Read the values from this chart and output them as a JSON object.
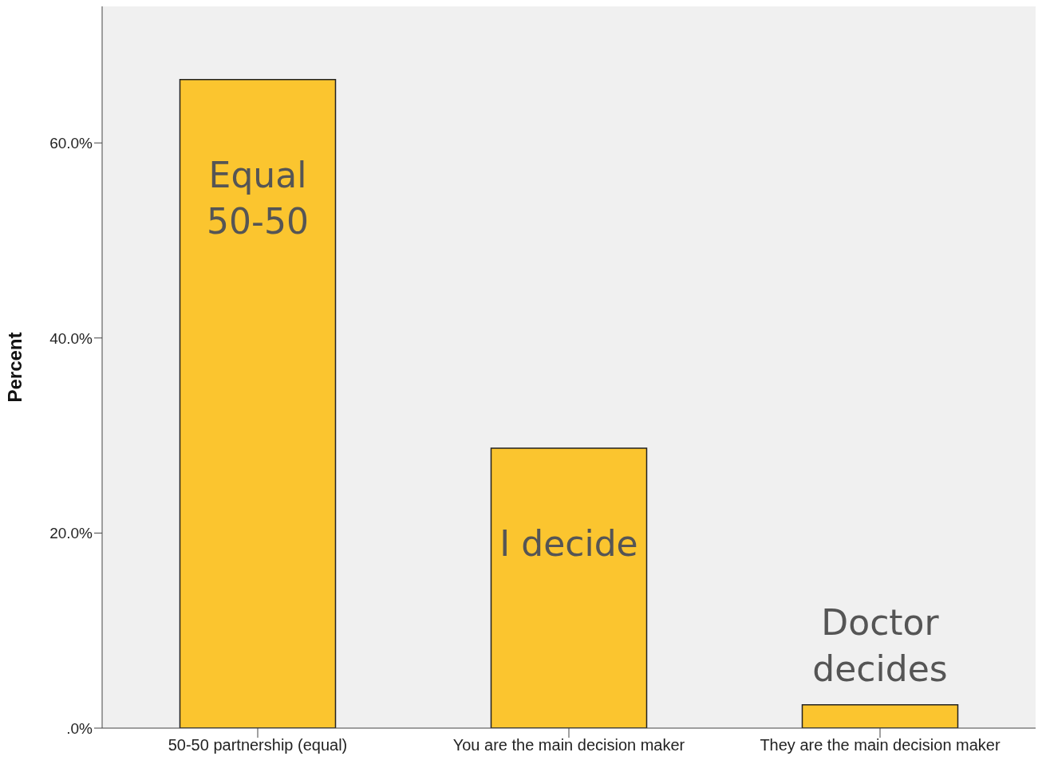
{
  "chart_data": {
    "type": "bar",
    "ylabel": "Percent",
    "categories": [
      "50-50 partnership (equal)",
      "You are the main decision maker",
      "They are the main decision maker"
    ],
    "values": [
      66.5,
      28.7,
      2.4
    ],
    "color": "#fbc52f",
    "ylim": [
      0,
      74
    ],
    "yticks": [
      {
        "value": 0,
        "label": ".0%"
      },
      {
        "value": 20,
        "label": "20.0%"
      },
      {
        "value": 40,
        "label": "40.0%"
      },
      {
        "value": 60,
        "label": "60.0%"
      }
    ],
    "grid": false,
    "legend": false,
    "annotations": [
      "Equal\n50-50",
      "I decide",
      "Doctor\ndecides"
    ]
  }
}
